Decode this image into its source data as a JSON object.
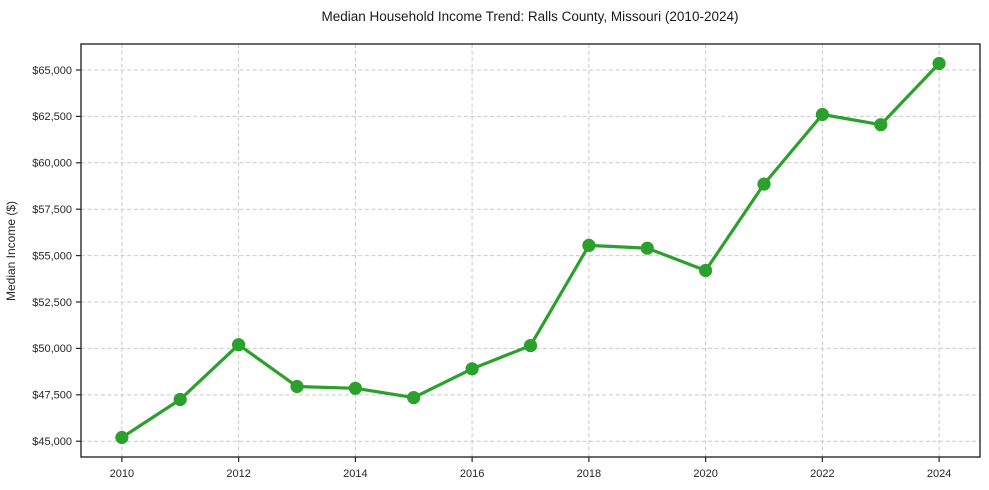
{
  "chart_data": {
    "type": "line",
    "title": "Median Household Income Trend: Ralls County, Missouri (2010-2024)",
    "xlabel": "",
    "ylabel": "Median Income ($)",
    "x": [
      2010,
      2011,
      2012,
      2013,
      2014,
      2015,
      2016,
      2017,
      2018,
      2019,
      2020,
      2021,
      2022,
      2023,
      2024
    ],
    "values": [
      45200,
      47250,
      50200,
      47950,
      47850,
      47350,
      48900,
      50150,
      55550,
      55400,
      54200,
      58850,
      62600,
      62050,
      65350
    ],
    "x_ticks": [
      2010,
      2012,
      2014,
      2016,
      2018,
      2020,
      2022,
      2024
    ],
    "x_tick_labels": [
      "2010",
      "2012",
      "2014",
      "2016",
      "2018",
      "2020",
      "2022",
      "2024"
    ],
    "y_ticks": [
      45000,
      47500,
      50000,
      52500,
      55000,
      57500,
      60000,
      62500,
      65000
    ],
    "y_tick_labels": [
      "$45,000",
      "$47,500",
      "$50,000",
      "$52,500",
      "$55,000",
      "$57,500",
      "$60,000",
      "$62,500",
      "$65,000"
    ],
    "xlim": [
      2009.3,
      2024.7
    ],
    "ylim": [
      44150,
      66400
    ],
    "grid": true,
    "legend": "none",
    "line_color": "#2ca02c",
    "marker": "circle",
    "background_color": "#ffffff"
  }
}
